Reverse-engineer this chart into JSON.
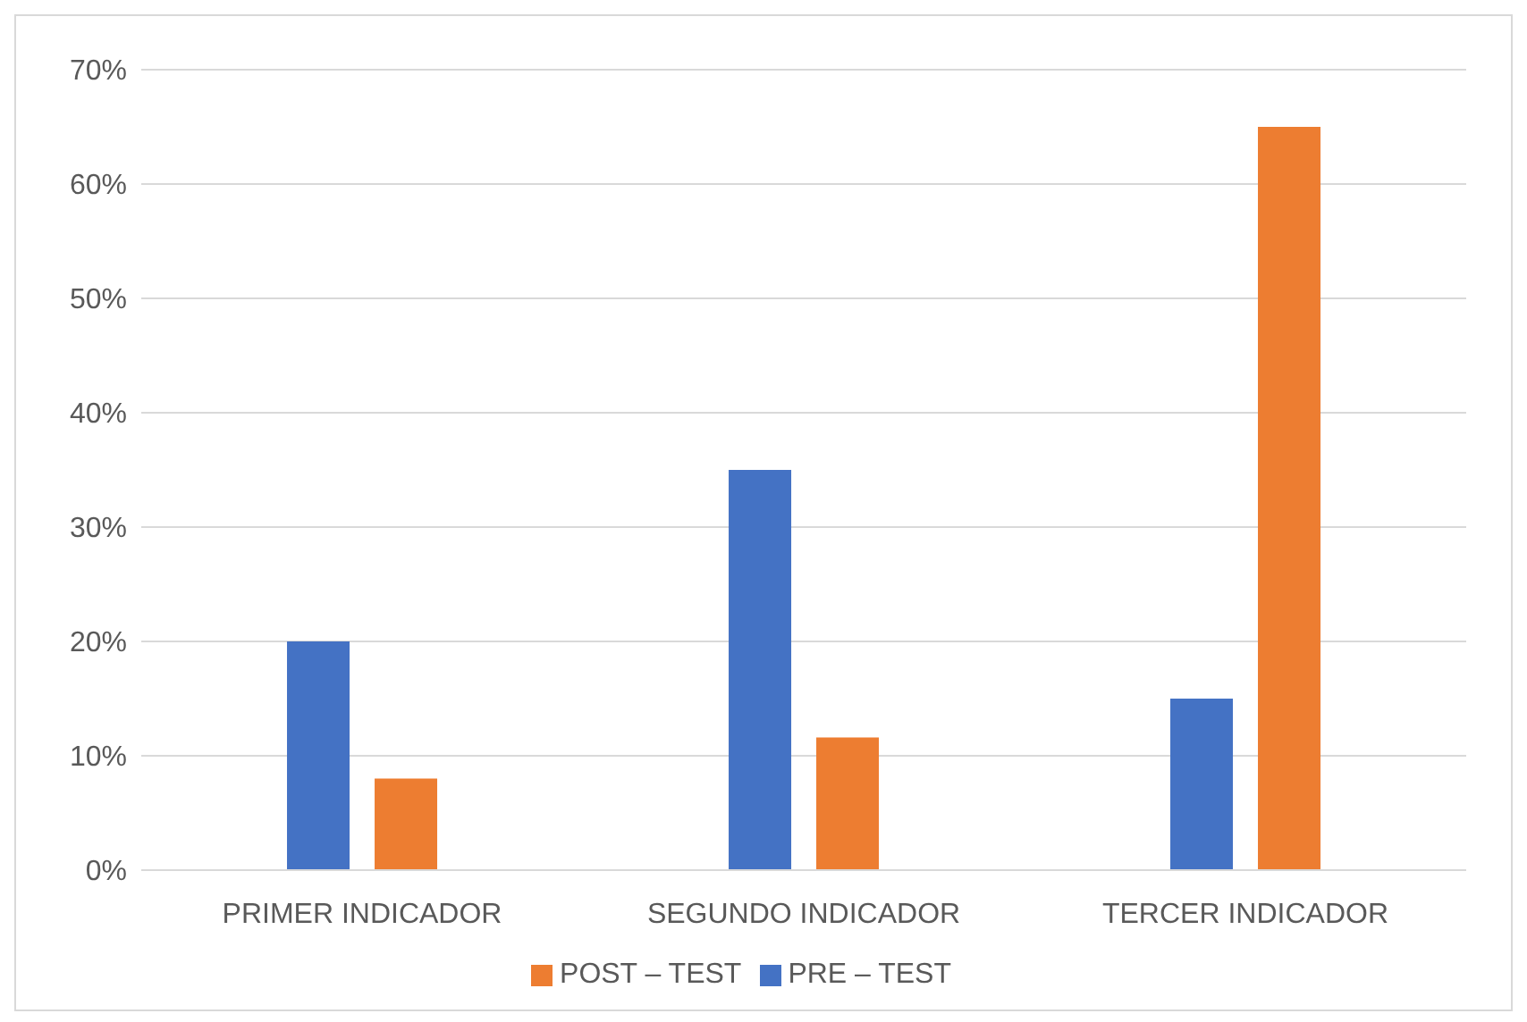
{
  "chart_data": {
    "type": "bar",
    "categories": [
      "PRIMER INDICADOR",
      "SEGUNDO INDICADOR",
      "TERCER INDICADOR"
    ],
    "series": [
      {
        "name": "PRE – TEST",
        "color": "#4472c4",
        "values": [
          20,
          35,
          15
        ]
      },
      {
        "name": "POST – TEST",
        "color": "#ed7d31",
        "values": [
          8,
          11.6,
          65
        ]
      }
    ],
    "ylim": [
      0,
      70
    ],
    "yticks": [
      {
        "value": 0,
        "label": "0%"
      },
      {
        "value": 10,
        "label": "10%"
      },
      {
        "value": 20,
        "label": "20%"
      },
      {
        "value": 30,
        "label": "30%"
      },
      {
        "value": 40,
        "label": "40%"
      },
      {
        "value": 50,
        "label": "50%"
      },
      {
        "value": 60,
        "label": "60%"
      },
      {
        "value": 70,
        "label": "70%"
      }
    ],
    "grid": "y",
    "legend": "bottom"
  }
}
